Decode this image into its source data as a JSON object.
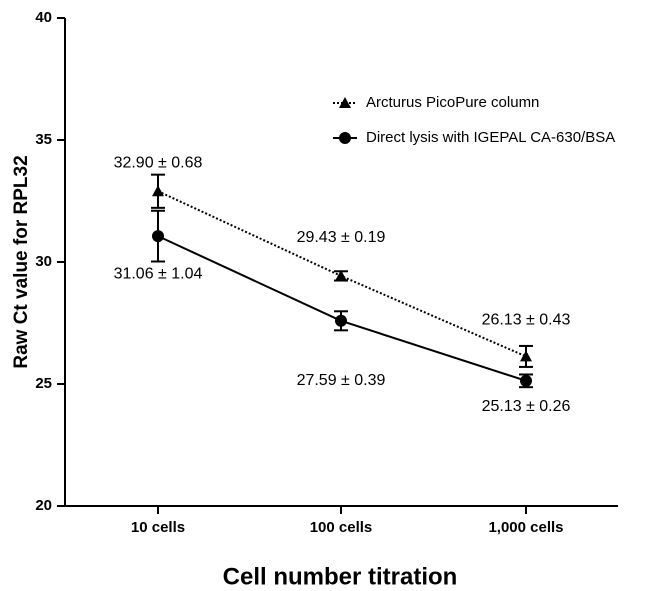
{
  "chart_data": {
    "type": "line",
    "x_label": "Cell number titration",
    "y_label": "Raw Ct value for RPL32",
    "categories": [
      "10 cells",
      "100 cells",
      "1,000 cells"
    ],
    "ylim": [
      20,
      40
    ],
    "yticks": [
      20,
      25,
      30,
      35,
      40
    ],
    "legend": "upper right",
    "series": [
      {
        "name": "Arcturus PicoPure column",
        "color": "#000000",
        "line_style": "dotted",
        "marker": "triangle",
        "values": [
          32.9,
          29.43,
          26.13
        ],
        "errors": [
          0.68,
          0.19,
          0.43
        ],
        "value_labels": [
          "32.90 ± 0.68",
          "29.43 ± 0.19",
          "26.13 ± 0.43"
        ]
      },
      {
        "name": "Direct lysis with IGEPAL CA-630/BSA",
        "color": "#000000",
        "line_style": "solid",
        "marker": "circle",
        "values": [
          31.06,
          27.59,
          25.13
        ],
        "errors": [
          1.04,
          0.39,
          0.26
        ],
        "value_labels": [
          "31.06 ± 1.04",
          "27.59 ± 0.39",
          "25.13 ± 0.26"
        ]
      }
    ]
  }
}
